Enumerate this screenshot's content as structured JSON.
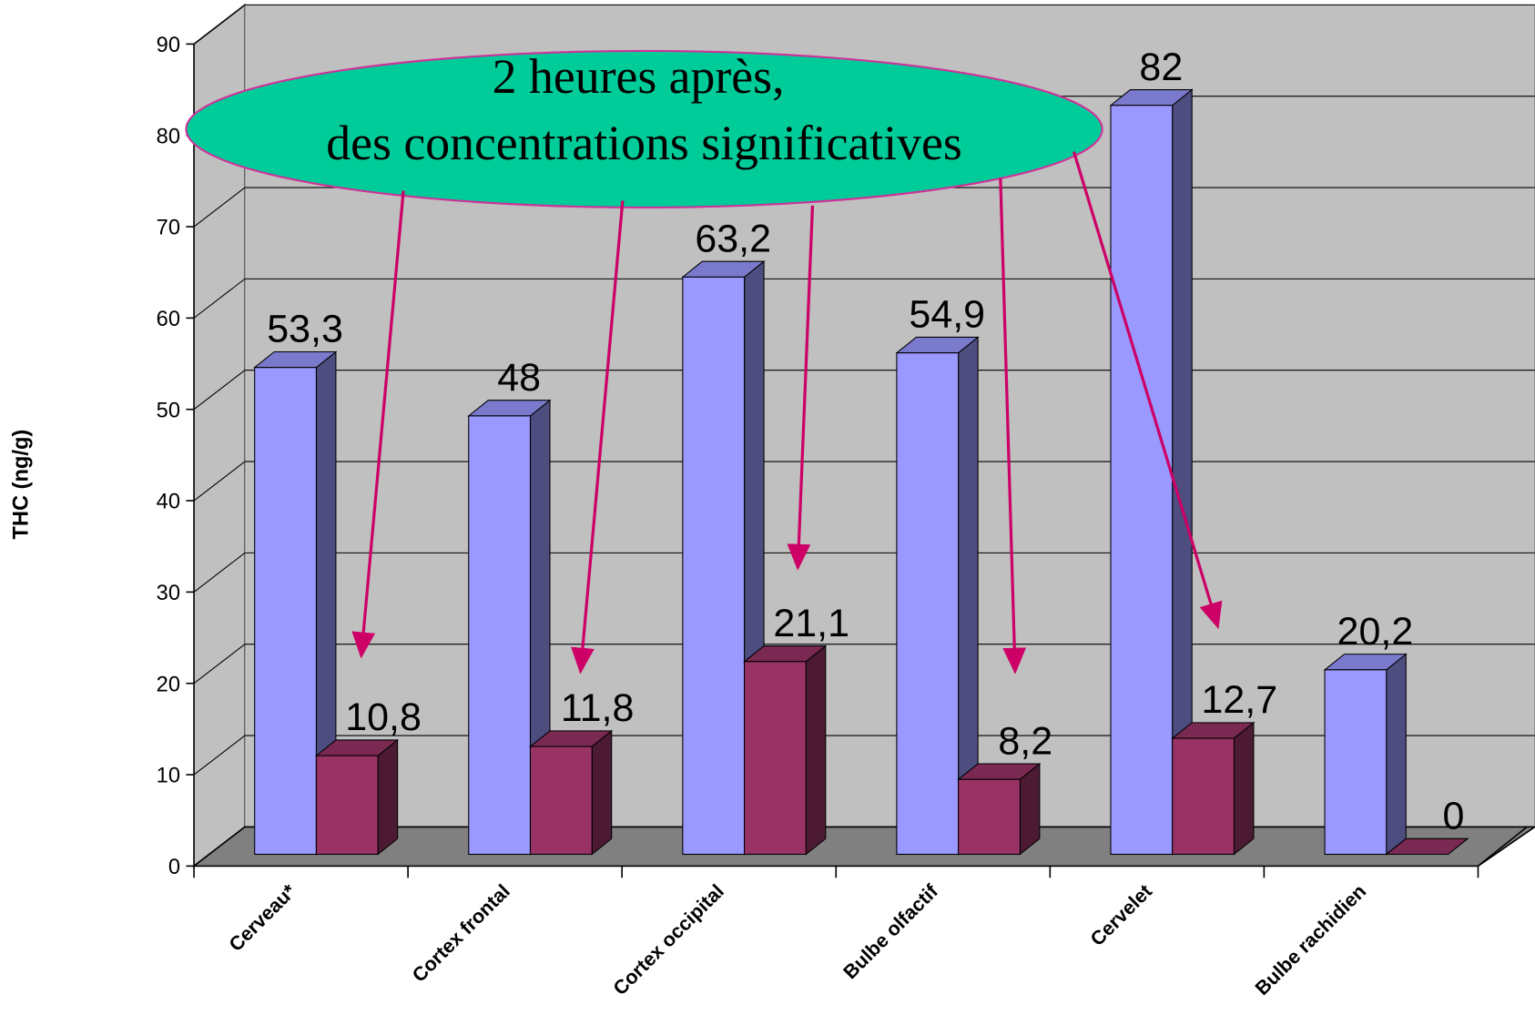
{
  "chart_data": {
    "type": "bar3d",
    "y_label": "THC (ng/g)",
    "annotations": [
      "2 heures après,",
      "des concentrations significatives"
    ],
    "categories": [
      "Cerveau*",
      "Cortex frontal",
      "Cortex occipital",
      "Bulbe olfactif",
      "Cervelet",
      "Bulbe rachidien"
    ],
    "series": [
      {
        "color": "#9999ff",
        "values": [
          53.3,
          48,
          63.2,
          54.9,
          82,
          20.2
        ],
        "value_labels": [
          "53,3",
          "48",
          "63,2",
          "54,9",
          "82",
          "20,2"
        ]
      },
      {
        "color": "#993366",
        "values": [
          10.8,
          11.8,
          21.1,
          8.2,
          12.7,
          0
        ],
        "value_labels": [
          "10,8",
          "11,8",
          "21,1",
          "8,2",
          "12,7",
          "0"
        ]
      }
    ],
    "ylim": [
      0,
      90
    ],
    "yticks": [
      0,
      10,
      20,
      30,
      40,
      50,
      60,
      70,
      80,
      90
    ],
    "grid": true
  }
}
